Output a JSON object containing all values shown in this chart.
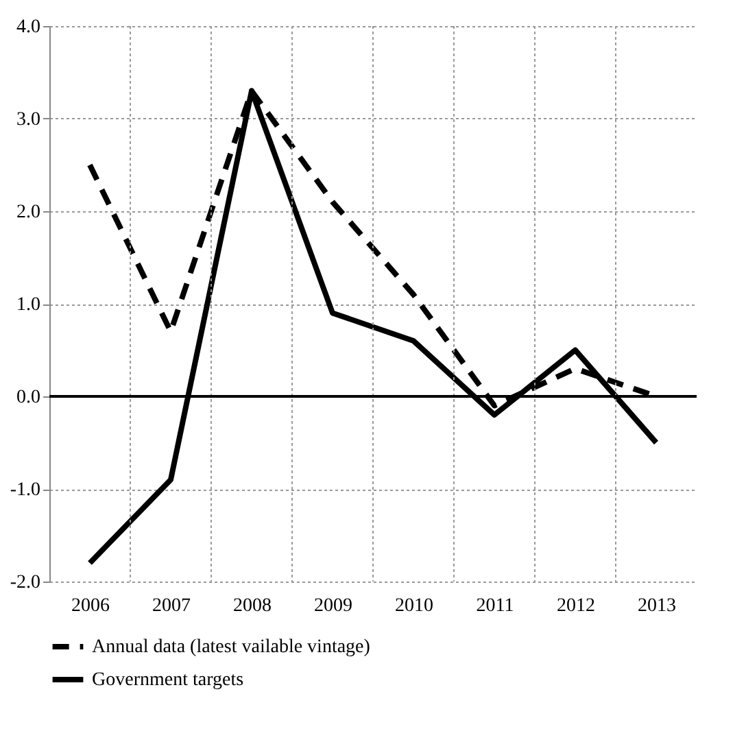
{
  "chart_data": {
    "type": "line",
    "categories": [
      "2006",
      "2007",
      "2008",
      "2009",
      "2010",
      "2011",
      "2012",
      "2013"
    ],
    "series": [
      {
        "name": "Annual data (latest vailable vintage)",
        "color": "#000000",
        "line_style": "dashed",
        "values": [
          2.5,
          0.7,
          3.3,
          2.1,
          1.1,
          -0.1,
          0.3,
          0.0
        ]
      },
      {
        "name": "Government targets",
        "color": "#000000",
        "line_style": "solid",
        "values": [
          -1.8,
          -0.9,
          3.3,
          0.9,
          0.6,
          -0.2,
          0.5,
          -0.5
        ]
      }
    ],
    "ylim": [
      -2,
      4
    ],
    "yticks": [
      {
        "value": -2,
        "label": "-2.0"
      },
      {
        "value": -1,
        "label": "-1.0"
      },
      {
        "value": 0,
        "label": "0.0"
      },
      {
        "value": 1,
        "label": "1.0"
      },
      {
        "value": 2,
        "label": "2.0"
      },
      {
        "value": 3,
        "label": "3.0"
      },
      {
        "value": 4,
        "label": "4.0"
      }
    ],
    "ref_lines": [
      {
        "axis": "y",
        "value": 0,
        "color": "#000000"
      }
    ],
    "grid": true,
    "legend": "bottom",
    "marker": "none"
  }
}
